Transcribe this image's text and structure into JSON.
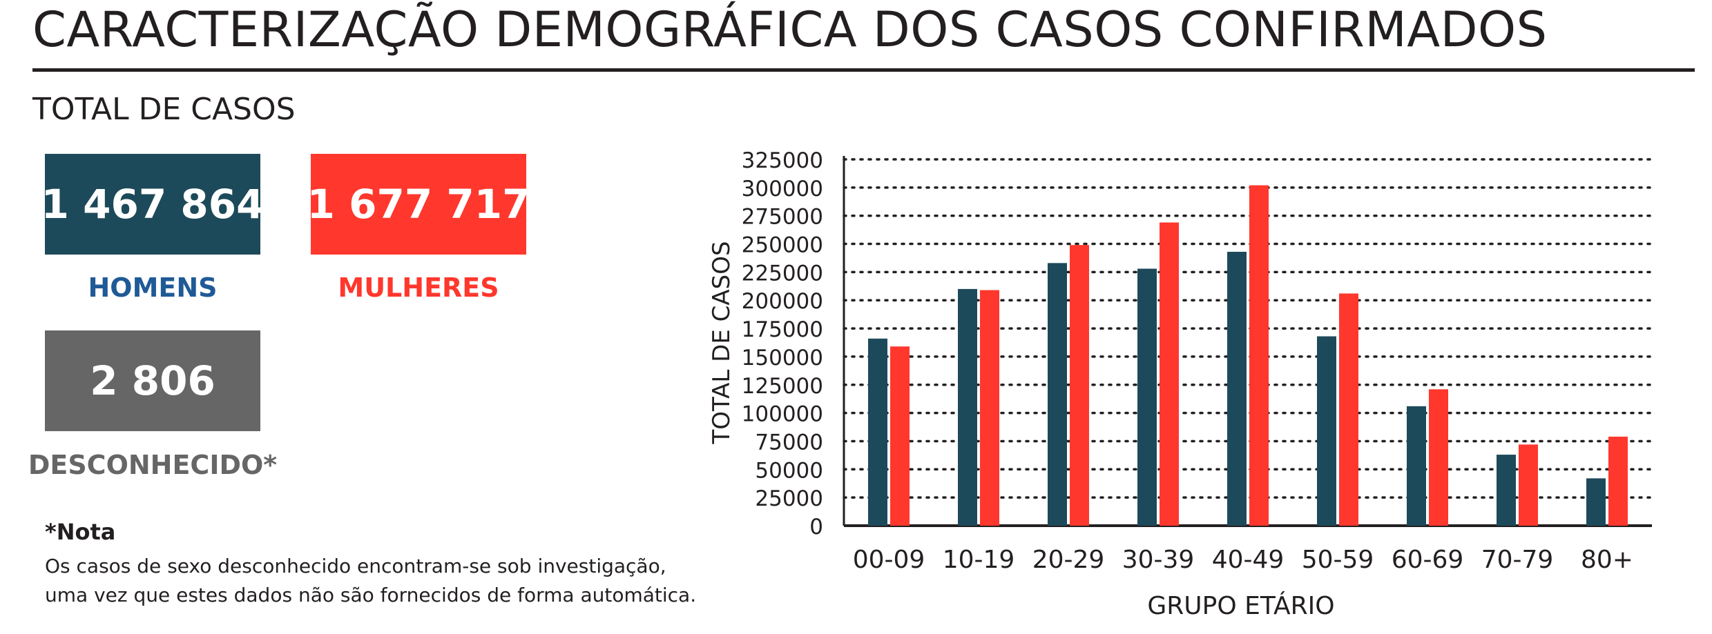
{
  "header": {
    "title": "CARACTERIZAÇÃO DEMOGRÁFICA DOS CASOS CONFIRMADOS"
  },
  "summary": {
    "section_title": "TOTAL DE CASOS",
    "men": {
      "value": "1 467 864",
      "label": "HOMENS"
    },
    "women": {
      "value": "1 677 717",
      "label": "MULHERES"
    },
    "unknown": {
      "value": "2 806",
      "label": "DESCONHECIDO*"
    }
  },
  "note": {
    "title": "*Nota",
    "lines": [
      "Os casos de sexo desconhecido encontram-se sob investigação,",
      "uma vez que estes dados não são fornecidos de forma automática."
    ]
  },
  "colors": {
    "men": "#1d4a5a",
    "women": "#ff372d",
    "unknown": "#666666",
    "men_label": "#1f5a96",
    "women_label": "#ff372d",
    "unknown_label": "#666666"
  },
  "chart_data": {
    "type": "bar",
    "categories": [
      "00-09",
      "10-19",
      "20-29",
      "30-39",
      "40-49",
      "50-59",
      "60-69",
      "70-79",
      "80+"
    ],
    "series": [
      {
        "values": [
          166000,
          210000,
          233000,
          228000,
          243000,
          168000,
          106000,
          63000,
          42000
        ],
        "color": "#1d4a5a"
      },
      {
        "values": [
          159000,
          209000,
          249000,
          269000,
          302000,
          206000,
          121000,
          72000,
          79000
        ],
        "color": "#ff372d"
      }
    ],
    "xlabel": "GRUPO ETÁRIO",
    "ylabel": "TOTAL DE CASOS",
    "ylim": [
      0,
      325000
    ],
    "ytick_step": 25000,
    "grid": true,
    "legend": false
  }
}
